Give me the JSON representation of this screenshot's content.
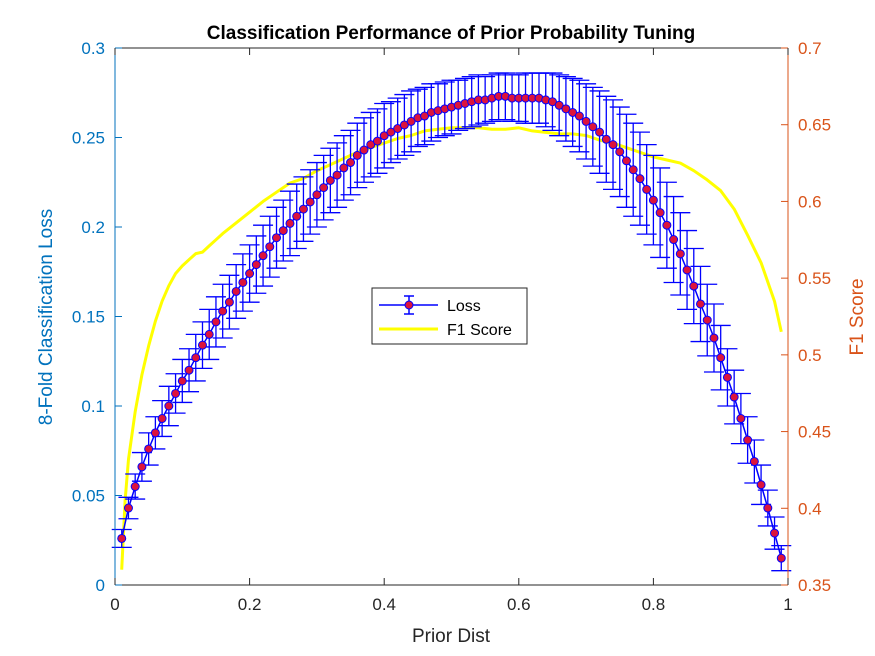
{
  "chart_data": {
    "type": "line",
    "title": "Classification Performance of Prior Probability Tuning",
    "xlabel": "Prior Dist",
    "ylabel_left": "8-Fold Classification Loss",
    "ylabel_right": "F1 Score",
    "xlim": [
      0,
      1
    ],
    "ylim_left": [
      0,
      0.3
    ],
    "ylim_right": [
      0.35,
      0.7
    ],
    "x_ticks": [
      "0",
      "0.2",
      "0.4",
      "0.6",
      "0.8",
      "1"
    ],
    "y_left_ticks": [
      "0",
      "0.05",
      "0.1",
      "0.15",
      "0.2",
      "0.25",
      "0.3"
    ],
    "y_right_ticks": [
      "0.35",
      "0.4",
      "0.45",
      "0.5",
      "0.55",
      "0.6",
      "0.65",
      "0.7"
    ],
    "legend_position": "center",
    "colors": {
      "left_axis": "#0072bd",
      "right_axis": "#d95319",
      "loss_line": "#0000ff",
      "loss_marker": "#dc143c",
      "f1_line": "#ffff00"
    },
    "series": [
      {
        "name": "Loss",
        "axis": "left",
        "error_bars": true,
        "x": [
          0.01,
          0.02,
          0.03,
          0.04,
          0.05,
          0.06,
          0.07,
          0.08,
          0.09,
          0.1,
          0.11,
          0.12,
          0.13,
          0.14,
          0.15,
          0.16,
          0.17,
          0.18,
          0.19,
          0.2,
          0.21,
          0.22,
          0.23,
          0.24,
          0.25,
          0.26,
          0.27,
          0.28,
          0.29,
          0.3,
          0.31,
          0.32,
          0.33,
          0.34,
          0.35,
          0.36,
          0.37,
          0.38,
          0.39,
          0.4,
          0.41,
          0.42,
          0.43,
          0.44,
          0.45,
          0.46,
          0.47,
          0.48,
          0.49,
          0.5,
          0.51,
          0.52,
          0.53,
          0.54,
          0.55,
          0.56,
          0.57,
          0.58,
          0.59,
          0.6,
          0.61,
          0.62,
          0.63,
          0.64,
          0.65,
          0.66,
          0.67,
          0.68,
          0.69,
          0.7,
          0.71,
          0.72,
          0.73,
          0.74,
          0.75,
          0.76,
          0.77,
          0.78,
          0.79,
          0.8,
          0.81,
          0.82,
          0.83,
          0.84,
          0.85,
          0.86,
          0.87,
          0.88,
          0.89,
          0.9,
          0.91,
          0.92,
          0.93,
          0.94,
          0.95,
          0.96,
          0.97,
          0.98,
          0.99
        ],
        "values": [
          0.026,
          0.043,
          0.055,
          0.066,
          0.076,
          0.085,
          0.093,
          0.1,
          0.107,
          0.114,
          0.12,
          0.127,
          0.134,
          0.14,
          0.147,
          0.153,
          0.158,
          0.164,
          0.169,
          0.174,
          0.179,
          0.184,
          0.189,
          0.194,
          0.198,
          0.202,
          0.206,
          0.21,
          0.214,
          0.218,
          0.222,
          0.226,
          0.229,
          0.233,
          0.236,
          0.24,
          0.243,
          0.246,
          0.248,
          0.251,
          0.253,
          0.255,
          0.257,
          0.259,
          0.261,
          0.262,
          0.264,
          0.265,
          0.266,
          0.267,
          0.268,
          0.269,
          0.27,
          0.271,
          0.271,
          0.272,
          0.273,
          0.273,
          0.272,
          0.272,
          0.272,
          0.272,
          0.272,
          0.271,
          0.27,
          0.268,
          0.266,
          0.264,
          0.262,
          0.259,
          0.256,
          0.253,
          0.249,
          0.246,
          0.242,
          0.237,
          0.232,
          0.227,
          0.221,
          0.215,
          0.208,
          0.201,
          0.193,
          0.185,
          0.176,
          0.167,
          0.157,
          0.148,
          0.138,
          0.127,
          0.116,
          0.105,
          0.093,
          0.081,
          0.069,
          0.056,
          0.043,
          0.029,
          0.015
        ],
        "errors": [
          0.005,
          0.006,
          0.007,
          0.008,
          0.009,
          0.009,
          0.01,
          0.011,
          0.011,
          0.012,
          0.012,
          0.013,
          0.013,
          0.014,
          0.014,
          0.015,
          0.015,
          0.015,
          0.016,
          0.016,
          0.016,
          0.017,
          0.017,
          0.017,
          0.017,
          0.018,
          0.018,
          0.018,
          0.018,
          0.018,
          0.018,
          0.018,
          0.018,
          0.018,
          0.018,
          0.018,
          0.018,
          0.018,
          0.018,
          0.018,
          0.017,
          0.017,
          0.017,
          0.017,
          0.016,
          0.016,
          0.016,
          0.015,
          0.015,
          0.015,
          0.014,
          0.014,
          0.014,
          0.014,
          0.013,
          0.013,
          0.013,
          0.013,
          0.013,
          0.013,
          0.014,
          0.014,
          0.014,
          0.015,
          0.016,
          0.017,
          0.018,
          0.019,
          0.02,
          0.021,
          0.022,
          0.023,
          0.024,
          0.025,
          0.025,
          0.026,
          0.026,
          0.026,
          0.025,
          0.025,
          0.025,
          0.024,
          0.024,
          0.023,
          0.022,
          0.021,
          0.021,
          0.02,
          0.019,
          0.018,
          0.016,
          0.015,
          0.014,
          0.013,
          0.012,
          0.011,
          0.01,
          0.009,
          0.007
        ]
      },
      {
        "name": "F1 Score",
        "axis": "right",
        "x": [
          0.01,
          0.015,
          0.02,
          0.03,
          0.04,
          0.05,
          0.06,
          0.07,
          0.08,
          0.09,
          0.1,
          0.11,
          0.12,
          0.13,
          0.14,
          0.15,
          0.16,
          0.18,
          0.2,
          0.22,
          0.24,
          0.26,
          0.28,
          0.3,
          0.32,
          0.34,
          0.36,
          0.38,
          0.4,
          0.42,
          0.44,
          0.46,
          0.48,
          0.5,
          0.52,
          0.54,
          0.56,
          0.58,
          0.6,
          0.62,
          0.64,
          0.66,
          0.68,
          0.7,
          0.72,
          0.74,
          0.76,
          0.78,
          0.8,
          0.82,
          0.84,
          0.86,
          0.88,
          0.9,
          0.92,
          0.94,
          0.96,
          0.98,
          0.99
        ],
        "values": [
          0.36,
          0.405,
          0.432,
          0.463,
          0.487,
          0.506,
          0.522,
          0.535,
          0.545,
          0.553,
          0.558,
          0.562,
          0.566,
          0.567,
          0.571,
          0.575,
          0.579,
          0.586,
          0.593,
          0.6,
          0.606,
          0.612,
          0.615,
          0.62,
          0.624,
          0.628,
          0.632,
          0.635,
          0.638,
          0.641,
          0.643,
          0.646,
          0.647,
          0.648,
          0.648,
          0.648,
          0.647,
          0.647,
          0.648,
          0.646,
          0.645,
          0.644,
          0.644,
          0.643,
          0.64,
          0.638,
          0.635,
          0.632,
          0.629,
          0.627,
          0.625,
          0.62,
          0.614,
          0.607,
          0.595,
          0.578,
          0.56,
          0.535,
          0.515
        ]
      }
    ]
  }
}
